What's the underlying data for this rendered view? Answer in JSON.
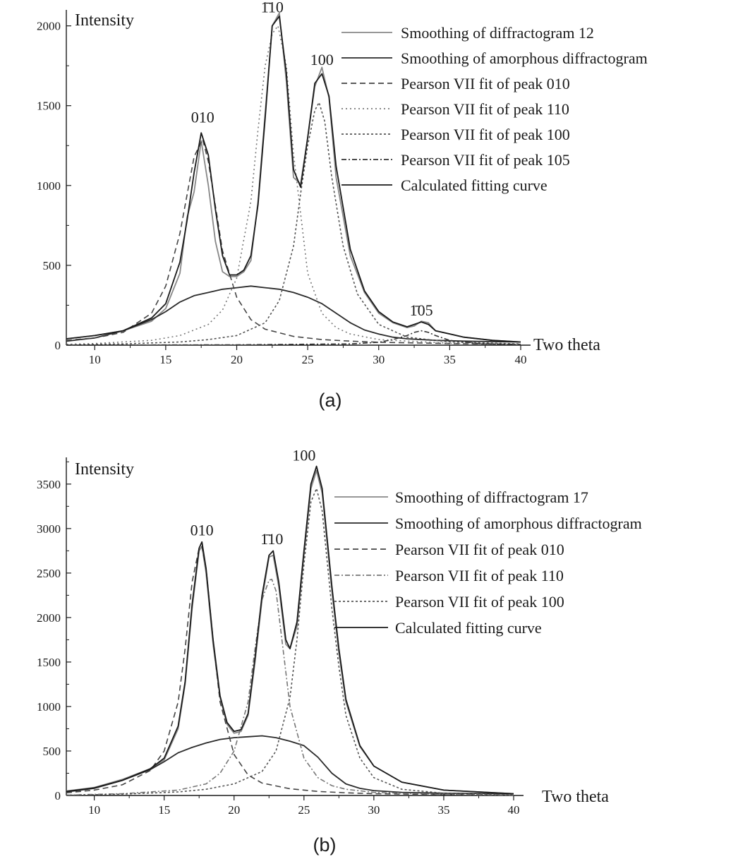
{
  "chart_data": [
    {
      "panel": "(a)",
      "type": "line",
      "ylabel": "Intensity",
      "xlabel": "Two theta",
      "xlim": [
        8,
        40
      ],
      "ylim": [
        0,
        2100
      ],
      "x_ticks": [
        10,
        15,
        20,
        25,
        30,
        35,
        40
      ],
      "y_ticks": [
        0,
        500,
        1000,
        1500,
        2000
      ],
      "grid": false,
      "legend_position": "top-right",
      "peak_labels": [
        {
          "text": "010",
          "x": 17.6,
          "y": 1360
        },
        {
          "text": "1̄10",
          "x": 22.5,
          "y": 2050
        },
        {
          "text": "100",
          "x": 26.0,
          "y": 1720
        },
        {
          "text": "1̄05",
          "x": 33.0,
          "y": 150
        }
      ],
      "series": [
        {
          "name": "Smoothing of diffractogram 12",
          "color": "#888888",
          "dash": "solid",
          "x": [
            8,
            10,
            12,
            14,
            15,
            16,
            16.5,
            17,
            17.5,
            18,
            18.5,
            19,
            19.5,
            20,
            20.5,
            21,
            21.5,
            22,
            22.5,
            23,
            23.5,
            24,
            24.5,
            25,
            25.5,
            26,
            26.5,
            27,
            28,
            29,
            30,
            31,
            32,
            32.5,
            33,
            33.5,
            34,
            36,
            38,
            40
          ],
          "y": [
            40,
            60,
            90,
            150,
            230,
            450,
            800,
            960,
            1280,
            1000,
            650,
            460,
            430,
            430,
            460,
            530,
            900,
            1450,
            2000,
            2080,
            1650,
            1050,
            1010,
            1300,
            1620,
            1740,
            1550,
            1050,
            560,
            330,
            200,
            140,
            110,
            120,
            150,
            140,
            90,
            50,
            30,
            20
          ]
        },
        {
          "name": "Smoothing of amorphous diffractogram",
          "color": "#2a2a2a",
          "dash": "solid",
          "x": [
            8,
            10,
            12,
            14,
            15,
            16,
            17,
            18,
            19,
            20,
            21,
            22,
            23,
            24,
            25,
            26,
            27,
            28,
            29,
            30,
            31,
            32,
            33,
            34,
            36,
            38,
            40
          ],
          "y": [
            25,
            45,
            90,
            160,
            210,
            270,
            310,
            330,
            350,
            360,
            370,
            360,
            350,
            330,
            300,
            260,
            200,
            140,
            95,
            70,
            50,
            40,
            35,
            30,
            25,
            22,
            20
          ]
        },
        {
          "name": "Pearson VII fit of peak 010",
          "color": "#444444",
          "dash": "8,5",
          "x": [
            8,
            10,
            12,
            14,
            15,
            16,
            17,
            17.6,
            18,
            19,
            20,
            21,
            22,
            24,
            26,
            28,
            30,
            35,
            40
          ],
          "y": [
            30,
            45,
            80,
            200,
            370,
            700,
            1180,
            1290,
            1150,
            590,
            300,
            160,
            100,
            55,
            35,
            25,
            18,
            10,
            5
          ]
        },
        {
          "name": "Pearson VII fit of peak 110",
          "color": "#777777",
          "dash": "2,4",
          "x": [
            8,
            10,
            14,
            16,
            18,
            19,
            20,
            21,
            21.5,
            22,
            22.5,
            22.9,
            23.5,
            24,
            25,
            26,
            27,
            28,
            30,
            35,
            40
          ],
          "y": [
            5,
            10,
            30,
            60,
            130,
            220,
            420,
            900,
            1350,
            1750,
            1950,
            2000,
            1750,
            1200,
            450,
            200,
            110,
            70,
            35,
            12,
            6
          ]
        },
        {
          "name": "Pearson VII fit of peak 100",
          "color": "#555555",
          "dash": "3,3",
          "x": [
            8,
            12,
            16,
            18,
            20,
            22,
            23,
            24,
            24.5,
            25,
            25.5,
            25.8,
            26.2,
            26.7,
            27.5,
            28.5,
            30,
            32,
            35,
            40
          ],
          "y": [
            3,
            8,
            20,
            35,
            60,
            140,
            280,
            620,
            950,
            1250,
            1470,
            1520,
            1400,
            1050,
            620,
            320,
            130,
            50,
            20,
            8
          ]
        },
        {
          "name": "Pearson VII fit of peak 105",
          "color": "#333333",
          "dash": "7,3,2,3",
          "x": [
            8,
            20,
            28,
            30,
            31,
            32,
            32.5,
            33,
            33.5,
            34,
            35,
            37,
            40
          ],
          "y": [
            0,
            2,
            8,
            18,
            35,
            60,
            80,
            90,
            80,
            60,
            30,
            10,
            3
          ]
        },
        {
          "name": "Calculated fitting curve",
          "color": "#1a1a1a",
          "dash": "solid",
          "x": [
            8,
            10,
            12,
            14,
            15,
            16,
            16.5,
            17,
            17.5,
            18,
            18.5,
            19,
            19.5,
            20,
            20.5,
            21,
            21.5,
            22,
            22.5,
            23,
            23.5,
            24,
            24.5,
            25,
            25.5,
            26,
            26.5,
            27,
            28,
            29,
            30,
            31,
            32,
            32.5,
            33,
            33.5,
            34,
            36,
            38,
            40
          ],
          "y": [
            40,
            60,
            90,
            170,
            260,
            520,
            780,
            1080,
            1330,
            1190,
            850,
            560,
            440,
            440,
            470,
            560,
            880,
            1420,
            2000,
            2060,
            1700,
            1100,
            990,
            1300,
            1640,
            1700,
            1560,
            1120,
            600,
            340,
            210,
            145,
            115,
            130,
            145,
            130,
            90,
            50,
            30,
            20
          ]
        }
      ]
    },
    {
      "panel": "(b)",
      "type": "line",
      "ylabel": "Intensity",
      "xlabel": "Two theta",
      "xlim": [
        8,
        40
      ],
      "ylim": [
        0,
        3800
      ],
      "x_ticks": [
        10,
        15,
        20,
        25,
        30,
        35,
        40
      ],
      "y_ticks": [
        0,
        500,
        1000,
        1500,
        2000,
        2500,
        3000,
        3500
      ],
      "grid": false,
      "legend_position": "top-right",
      "peak_labels": [
        {
          "text": "010",
          "x": 17.7,
          "y": 2860
        },
        {
          "text": "1̄10",
          "x": 22.7,
          "y": 2760
        },
        {
          "text": "100",
          "x": 25.0,
          "y": 3700
        }
      ],
      "series": [
        {
          "name": "Smoothing of diffractogram 17",
          "color": "#888888",
          "dash": "solid",
          "x": [
            8,
            10,
            12,
            14,
            15,
            16,
            16.5,
            17,
            17.5,
            17.7,
            18,
            18.5,
            19,
            19.5,
            20,
            20.5,
            21,
            21.5,
            22,
            22.5,
            22.8,
            23.2,
            23.7,
            24,
            24.5,
            25,
            25.5,
            25.9,
            26.3,
            27,
            27.5,
            28,
            29,
            30,
            32,
            35,
            40
          ],
          "y": [
            50,
            90,
            180,
            300,
            400,
            750,
            1250,
            2100,
            2750,
            2800,
            2500,
            1700,
            1100,
            800,
            700,
            720,
            900,
            1500,
            2200,
            2680,
            2700,
            2350,
            1700,
            1650,
            1900,
            2700,
            3450,
            3650,
            3400,
            2300,
            1600,
            1050,
            550,
            330,
            150,
            60,
            20
          ]
        },
        {
          "name": "Smoothing of amorphous diffractogram",
          "color": "#2a2a2a",
          "dash": "solid",
          "x": [
            8,
            10,
            12,
            14,
            15,
            16,
            17,
            18,
            19,
            20,
            21,
            22,
            23,
            24,
            25,
            26,
            27,
            28,
            29,
            30,
            32,
            35,
            40
          ],
          "y": [
            40,
            80,
            170,
            290,
            380,
            480,
            540,
            590,
            630,
            650,
            660,
            670,
            650,
            610,
            560,
            430,
            250,
            130,
            80,
            55,
            35,
            25,
            20
          ]
        },
        {
          "name": "Pearson VII fit of peak 010",
          "color": "#444444",
          "dash": "8,5",
          "x": [
            8,
            10,
            12,
            14,
            15,
            16,
            16.5,
            17,
            17.5,
            17.7,
            18,
            18.5,
            19,
            20,
            21,
            22,
            24,
            26,
            28,
            30,
            35,
            40
          ],
          "y": [
            30,
            60,
            120,
            280,
            500,
            1050,
            1650,
            2400,
            2780,
            2800,
            2550,
            1750,
            1050,
            460,
            230,
            140,
            75,
            45,
            30,
            20,
            10,
            5
          ]
        },
        {
          "name": "Pearson VII fit of peak 110",
          "color": "#777777",
          "dash": "7,3,2,3",
          "x": [
            8,
            12,
            16,
            18,
            19,
            20,
            21,
            21.5,
            22,
            22.5,
            22.7,
            23,
            23.5,
            24,
            25,
            26,
            27,
            28,
            30,
            35,
            40
          ],
          "y": [
            5,
            20,
            60,
            130,
            250,
            500,
            1050,
            1650,
            2200,
            2420,
            2430,
            2300,
            1650,
            1000,
            420,
            200,
            110,
            70,
            35,
            12,
            5
          ]
        },
        {
          "name": "Pearson VII fit of peak 100",
          "color": "#555555",
          "dash": "3,3",
          "x": [
            8,
            12,
            16,
            18,
            20,
            22,
            23,
            24,
            24.5,
            25,
            25.5,
            25.9,
            26.3,
            27,
            27.5,
            28,
            29,
            30,
            32,
            35,
            40
          ],
          "y": [
            3,
            15,
            40,
            70,
            130,
            270,
            500,
            1100,
            1750,
            2600,
            3300,
            3450,
            3200,
            2100,
            1450,
            900,
            420,
            200,
            70,
            25,
            8
          ]
        },
        {
          "name": "Calculated fitting curve",
          "color": "#1a1a1a",
          "dash": "solid",
          "x": [
            8,
            10,
            12,
            14,
            15,
            16,
            16.5,
            17,
            17.5,
            17.7,
            18,
            18.5,
            19,
            19.5,
            20,
            20.5,
            21,
            21.5,
            22,
            22.5,
            22.8,
            23.2,
            23.7,
            24,
            24.5,
            25,
            25.5,
            25.9,
            26.3,
            27,
            27.5,
            28,
            29,
            30,
            32,
            35,
            40
          ],
          "y": [
            45,
            85,
            170,
            300,
            420,
            780,
            1280,
            2150,
            2780,
            2850,
            2550,
            1750,
            1120,
            820,
            720,
            740,
            920,
            1550,
            2250,
            2700,
            2750,
            2400,
            1750,
            1650,
            1950,
            2750,
            3500,
            3700,
            3450,
            2350,
            1650,
            1080,
            560,
            330,
            150,
            60,
            20
          ]
        }
      ]
    }
  ],
  "captions": [
    "(a)",
    "(b)"
  ]
}
